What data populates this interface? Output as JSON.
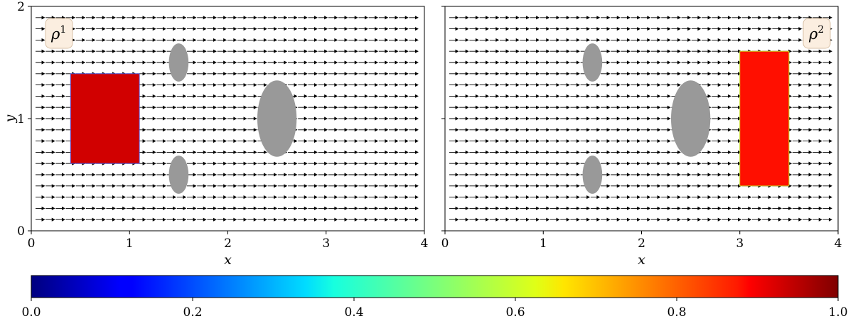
{
  "chart_data": [
    {
      "type": "field",
      "label": "ρ¹",
      "label_base": "ρ",
      "label_sup": "1",
      "xlabel": "x",
      "ylabel": "y",
      "xlim": [
        0,
        4
      ],
      "ylim": [
        0,
        2
      ],
      "xticks": [
        0,
        1,
        2,
        3,
        4
      ],
      "yticks": [
        0,
        1,
        2
      ],
      "ytick_labels_shown": true,
      "flow_direction": "+x",
      "obstacles": [
        {
          "cx": 1.5,
          "cy": 1.5,
          "rx": 0.1,
          "ry": 0.1
        },
        {
          "cx": 1.5,
          "cy": 0.5,
          "rx": 0.1,
          "ry": 0.1
        },
        {
          "cx": 2.5,
          "cy": 1.0,
          "rx": 0.2,
          "ry": 0.2
        }
      ],
      "density_region": {
        "x": [
          0.4,
          1.1
        ],
        "y": [
          0.6,
          1.4
        ],
        "value": 0.92
      }
    },
    {
      "type": "field",
      "label": "ρ²",
      "label_base": "ρ",
      "label_sup": "2",
      "xlabel": "x",
      "ylabel": "",
      "xlim": [
        0,
        4
      ],
      "ylim": [
        0,
        2
      ],
      "xticks": [
        0,
        1,
        2,
        3,
        4
      ],
      "yticks": [
        0,
        1,
        2
      ],
      "ytick_labels_shown": false,
      "flow_direction": "+x",
      "obstacles": [
        {
          "cx": 1.5,
          "cy": 1.5,
          "rx": 0.1,
          "ry": 0.1
        },
        {
          "cx": 1.5,
          "cy": 0.5,
          "rx": 0.1,
          "ry": 0.1
        },
        {
          "cx": 2.5,
          "cy": 1.0,
          "rx": 0.2,
          "ry": 0.2
        }
      ],
      "density_region": {
        "x": [
          3.0,
          3.5
        ],
        "y": [
          0.4,
          1.6
        ],
        "value": 0.86
      }
    }
  ],
  "colorbar": {
    "colormap": "jet",
    "range": [
      0,
      1
    ],
    "tick_labels": [
      "0.0",
      "0.2",
      "0.4",
      "0.6",
      "0.8",
      "1.0"
    ]
  },
  "colors": {
    "obstacle": "#999999",
    "arrow": "#000000",
    "label_box_fill": "#fbeee0",
    "label_box_edge": "#d9c2a8"
  }
}
